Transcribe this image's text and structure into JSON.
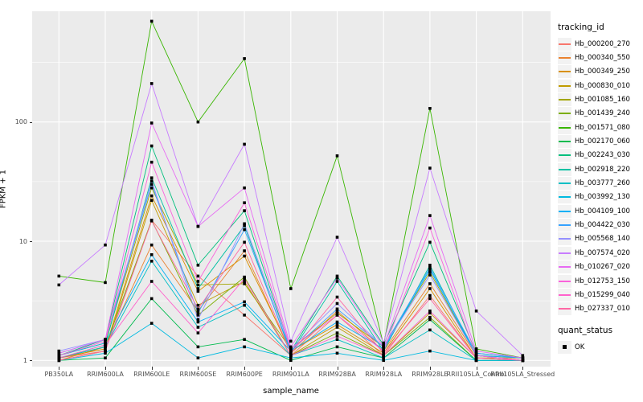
{
  "chart_data": {
    "type": "line",
    "title": "",
    "xlabel": "sample_name",
    "ylabel": "FPKM + 1",
    "y_scale": "log10",
    "y_ticks": [
      1,
      10,
      100
    ],
    "y_minor_ticks": [
      3.162,
      31.62,
      316.2
    ],
    "ylim": [
      0.9,
      836
    ],
    "legend_position": "right",
    "grid": "white major and minor gridlines on gray panel",
    "legend_title": "tracking_id",
    "categories": [
      "PB350LA",
      "RRIM600LA",
      "RRIM600LE",
      "RRIM600SE",
      "RRIM600PE",
      "RRIM901LA",
      "RRIM928BA",
      "RRIM928LA",
      "RRIM928LE",
      "RRII105LA_Control",
      "RRII105LA_Stressed"
    ],
    "series": [
      {
        "name": "Hb_000200_270",
        "color": "#F8766D",
        "values": [
          1.05,
          1.2,
          15,
          5.1,
          2.4,
          1.1,
          2.4,
          1.1,
          3.5,
          1.05,
          1.0
        ]
      },
      {
        "name": "Hb_000340_550",
        "color": "#EA8331",
        "values": [
          1.0,
          1.3,
          9.3,
          2.6,
          8.3,
          1.15,
          2.6,
          1.2,
          4.4,
          1.1,
          1.05
        ]
      },
      {
        "name": "Hb_000349_250",
        "color": "#D89000",
        "values": [
          1.05,
          1.25,
          24,
          3.8,
          7.5,
          1.2,
          2.0,
          1.15,
          4.0,
          1.05,
          1.0
        ]
      },
      {
        "name": "Hb_000830_010",
        "color": "#C09B00",
        "values": [
          1.0,
          1.2,
          22,
          2.9,
          4.6,
          1.1,
          1.9,
          1.1,
          2.5,
          1.05,
          1.05
        ]
      },
      {
        "name": "Hb_001085_160",
        "color": "#A3A500",
        "values": [
          1.1,
          1.4,
          28,
          4.3,
          4.4,
          1.25,
          2.5,
          1.3,
          5.5,
          1.1,
          1.0
        ]
      },
      {
        "name": "Hb_001439_240",
        "color": "#7CAE00",
        "values": [
          1.05,
          1.3,
          15,
          2.4,
          5.0,
          1.1,
          1.7,
          1.1,
          2.3,
          1.0,
          1.0
        ]
      },
      {
        "name": "Hb_001571_080",
        "color": "#39B600",
        "values": [
          5.1,
          4.5,
          700,
          100,
          340,
          4.0,
          52,
          1.35,
          130,
          1.25,
          1.05
        ]
      },
      {
        "name": "Hb_002170_060",
        "color": "#00BB4E",
        "values": [
          1.0,
          1.05,
          3.3,
          1.3,
          1.5,
          1.0,
          1.3,
          1.05,
          2.2,
          1.0,
          1.0
        ]
      },
      {
        "name": "Hb_002243_030",
        "color": "#00BF7D",
        "values": [
          1.1,
          1.5,
          63,
          6.3,
          18,
          1.2,
          5.1,
          1.35,
          9.8,
          1.15,
          1.05
        ]
      },
      {
        "name": "Hb_002918_220",
        "color": "#00C1A3",
        "values": [
          1.05,
          1.35,
          34,
          4.0,
          13.5,
          1.15,
          4.6,
          1.2,
          6.3,
          1.1,
          1.0
        ]
      },
      {
        "name": "Hb_003777_260",
        "color": "#00BFC4",
        "values": [
          1.05,
          1.3,
          6.8,
          1.9,
          2.9,
          1.1,
          1.5,
          1.05,
          1.8,
          1.0,
          1.0
        ]
      },
      {
        "name": "Hb_003992_130",
        "color": "#00BAE0",
        "values": [
          1.0,
          1.15,
          2.05,
          1.05,
          1.3,
          1.05,
          1.15,
          1.0,
          1.2,
          1.0,
          1.0
        ]
      },
      {
        "name": "Hb_004109_100",
        "color": "#00B0F6",
        "values": [
          1.1,
          1.4,
          7.7,
          2.1,
          3.1,
          1.2,
          2.1,
          1.25,
          5.8,
          1.1,
          1.05
        ]
      },
      {
        "name": "Hb_004422_030",
        "color": "#35A2FF",
        "values": [
          1.15,
          1.5,
          30,
          2.5,
          12.5,
          1.2,
          2.7,
          1.3,
          6.0,
          1.15,
          1.05
        ]
      },
      {
        "name": "Hb_005568_140",
        "color": "#9590FF",
        "values": [
          1.2,
          1.5,
          32,
          2.2,
          14,
          1.25,
          3.0,
          1.3,
          5.2,
          1.1,
          1.0
        ]
      },
      {
        "name": "Hb_007574_020",
        "color": "#C77CFF",
        "values": [
          4.3,
          9.3,
          210,
          13.3,
          65,
          1.45,
          10.8,
          1.4,
          41,
          2.6,
          1.1
        ]
      },
      {
        "name": "Hb_010267_020",
        "color": "#E76BF3",
        "values": [
          1.15,
          1.5,
          98,
          13.3,
          28,
          1.3,
          4.9,
          1.3,
          16.4,
          1.2,
          1.05
        ]
      },
      {
        "name": "Hb_012753_150",
        "color": "#FA62DB",
        "values": [
          1.1,
          1.45,
          46,
          4.6,
          21,
          1.25,
          2.4,
          1.2,
          12.9,
          1.1,
          1.0
        ]
      },
      {
        "name": "Hb_015299_040",
        "color": "#FF61CC",
        "values": [
          1.05,
          1.35,
          4.6,
          1.7,
          4.85,
          1.1,
          1.6,
          1.1,
          2.6,
          1.05,
          1.0
        ]
      },
      {
        "name": "Hb_027337_010",
        "color": "#FF67A4",
        "values": [
          1.0,
          1.2,
          14.8,
          2.7,
          9.8,
          1.15,
          3.4,
          1.15,
          3.3,
          1.05,
          1.0
        ]
      }
    ],
    "quant_legend": {
      "title": "quant_status",
      "items": [
        {
          "label": "OK",
          "shape": "square",
          "color": "#000000"
        }
      ]
    }
  },
  "colors": {
    "panel_bg": "#EBEBEB",
    "grid": "#FFFFFF",
    "tick_mark": "#333333",
    "tick_text": "#4D4D4D",
    "point": "#000000",
    "legend_key_bg": "#F2F2F2"
  }
}
